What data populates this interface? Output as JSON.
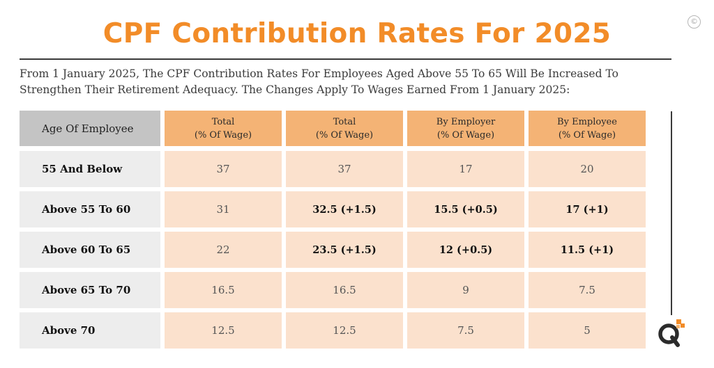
{
  "title": "CPF Contribution Rates For 2025",
  "copyright_symbol": "©",
  "intro": "From 1 January 2025, The CPF Contribution Rates For Employees Aged Above 55 To 65 Will Be Increased To Strengthen Their Retirement Adequacy. The Changes Apply To Wages Earned From 1 January 2025:",
  "table": {
    "headers": [
      {
        "line1": "Age Of Employee",
        "line2": ""
      },
      {
        "line1": "Total",
        "line2": "(% Of Wage)"
      },
      {
        "line1": "Total",
        "line2": "(% Of Wage)"
      },
      {
        "line1": "By Employer",
        "line2": "(% Of Wage)"
      },
      {
        "line1": "By Employee",
        "line2": "(% Of Wage)"
      }
    ],
    "rows": [
      {
        "age": "55 And Below",
        "values": [
          "37",
          "37",
          "17",
          "20"
        ]
      },
      {
        "age": "Above 55 To 60",
        "values": [
          "31",
          "32.5 (+1.5)",
          "15.5 (+0.5)",
          "17 (+1)"
        ]
      },
      {
        "age": "Above 60 To 65",
        "values": [
          "22",
          "23.5 (+1.5)",
          "12 (+0.5)",
          "11.5 (+1)"
        ]
      },
      {
        "age": "Above 65 To 70",
        "values": [
          "16.5",
          "16.5",
          "9",
          "7.5"
        ]
      },
      {
        "age": "Above 70",
        "values": [
          "12.5",
          "12.5",
          "7.5",
          "5"
        ]
      }
    ]
  },
  "colors": {
    "title": "#f28c28",
    "header_orange": "#f4b375",
    "cell_peach": "#fbe1cd",
    "label_gray": "#ededed",
    "header_gray": "#c4c4c4"
  },
  "logo_icon": "q-brand-logo-icon"
}
